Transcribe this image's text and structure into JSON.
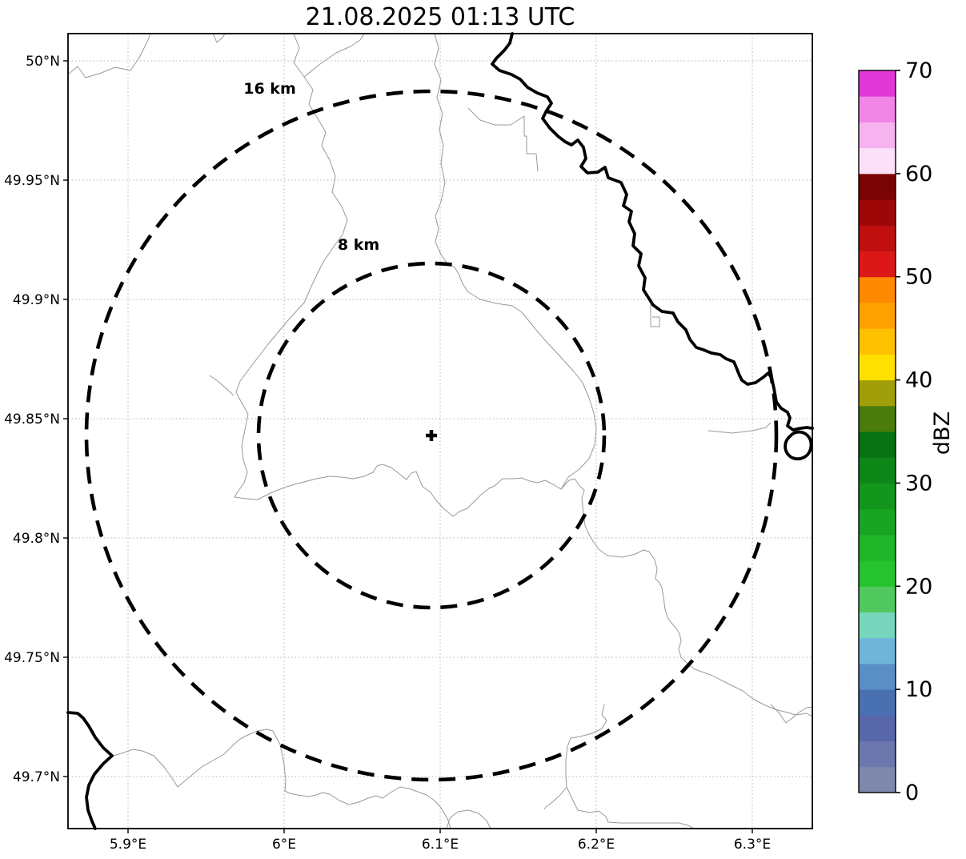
{
  "title": "21.08.2025 01:13 UTC",
  "map": {
    "x_ticks": [
      "5.9°E",
      "6°E",
      "6.1°E",
      "6.2°E",
      "6.3°E"
    ],
    "y_ticks": [
      "50°N",
      "49.95°N",
      "49.9°N",
      "49.85°N",
      "49.8°N",
      "49.75°N",
      "49.7°N"
    ],
    "range_rings": [
      {
        "label": "16 km",
        "radius_km": 16
      },
      {
        "label": "8 km",
        "radius_km": 8
      }
    ],
    "marker": "radar-site-cross",
    "line_legend": {
      "thick_black": "country-border-river",
      "thin_gray": "administrative-boundaries-rivers"
    }
  },
  "colorbar": {
    "label": "dBZ",
    "min": 0,
    "max": 70,
    "segment_step_dbz": 2.5,
    "tick_labels": [
      "0",
      "10",
      "20",
      "30",
      "40",
      "50",
      "60",
      "70"
    ],
    "colors_bottom_to_top": [
      "#7f89ad",
      "#6c78ad",
      "#5867a9",
      "#4971b1",
      "#5a8fc5",
      "#6fb5da",
      "#77d6bb",
      "#50ca5e",
      "#25c32e",
      "#1fb529",
      "#18a522",
      "#12961c",
      "#0c8717",
      "#067211",
      "#497c0b",
      "#a09f09",
      "#ffe000",
      "#ffc000",
      "#ffa200",
      "#ff8900",
      "#dc1717",
      "#bf0f0f",
      "#9e0707",
      "#7a0303",
      "#fbe0f8",
      "#f7b3ef",
      "#f186e6",
      "#e238d7"
    ]
  }
}
